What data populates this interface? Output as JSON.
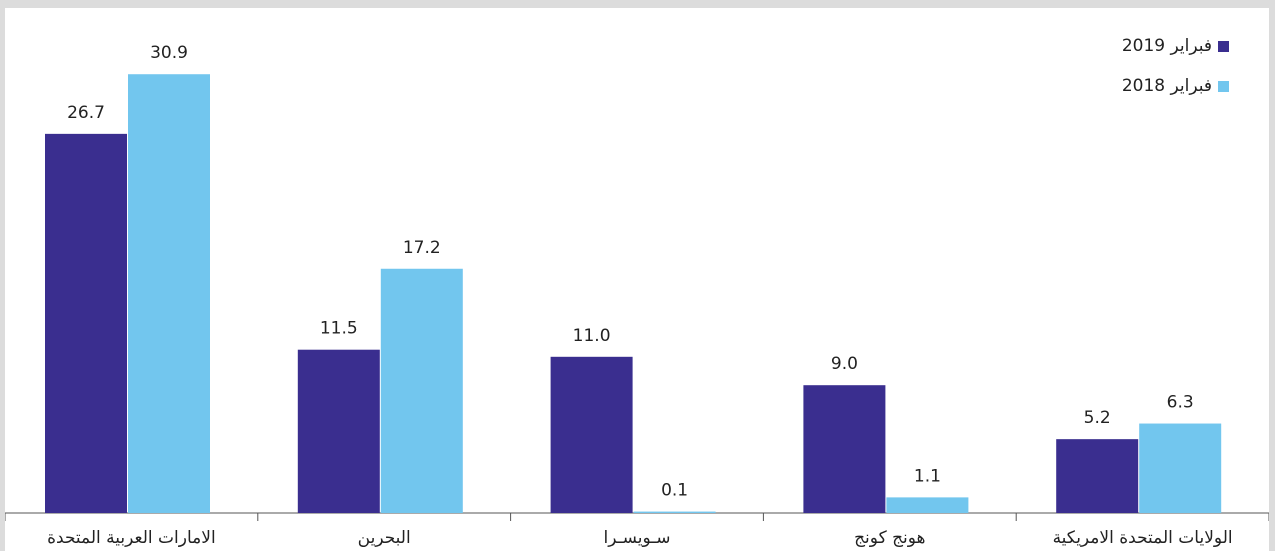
{
  "chart_data": {
    "type": "bar",
    "categories": [
      "الامارات العربية المتحدة",
      "البحرين",
      "سـويسـرا",
      "هونج كونج",
      "الولايات المتحدة الامريكية"
    ],
    "series": [
      {
        "name": "فبراير 2019",
        "color": "#3a2e8f",
        "values": [
          26.7,
          11.5,
          11.0,
          9.0,
          5.2
        ],
        "labels": [
          "26.7",
          "11.5",
          "11.0",
          "9.0",
          "5.2"
        ]
      },
      {
        "name": "فبراير 2018",
        "color": "#72c6ee",
        "values": [
          30.9,
          17.2,
          0.1,
          1.1,
          6.3
        ],
        "labels": [
          "30.9",
          "17.2",
          "0.1",
          "1.1",
          "6.3"
        ]
      }
    ],
    "ylim": [
      0,
      33
    ],
    "grid": false,
    "legend_position": "top-right"
  }
}
